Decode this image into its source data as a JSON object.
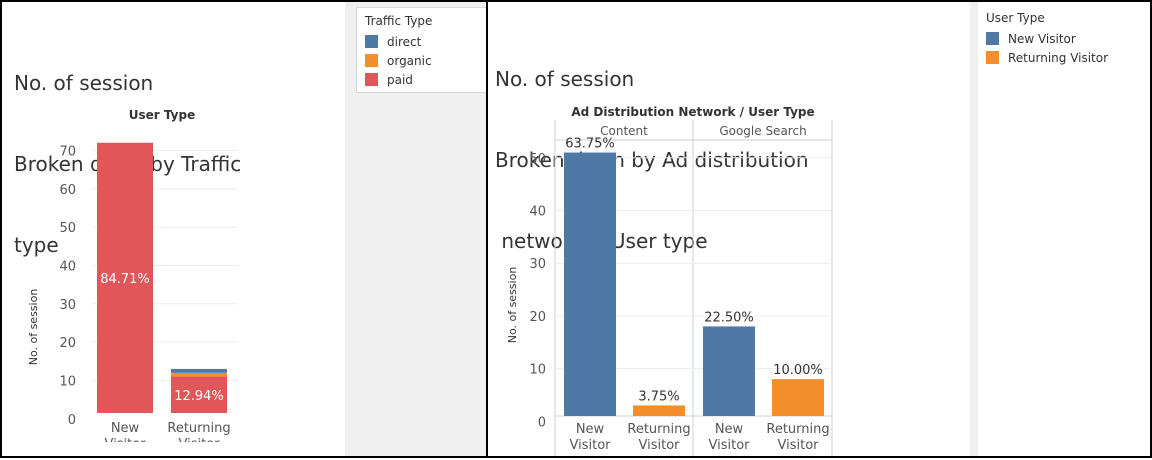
{
  "colors": {
    "blue": "#4e79a7",
    "orange": "#f28e2b",
    "red": "#e15759"
  },
  "left": {
    "title_lines": [
      "No. of session",
      "Broken down by Traffic",
      "type"
    ],
    "legend": {
      "title": "Traffic Type",
      "items": [
        {
          "label": "direct",
          "color": "#4e79a7"
        },
        {
          "label": "organic",
          "color": "#f28e2b"
        },
        {
          "label": "paid",
          "color": "#e15759"
        }
      ]
    }
  },
  "right": {
    "title_lines": [
      "No. of session",
      "Broken down by Ad distribution",
      " network & User type"
    ],
    "legend": {
      "title": "User Type",
      "items": [
        {
          "label": "New Visitor",
          "color": "#4e79a7"
        },
        {
          "label": "Returning Visitor",
          "color": "#f28e2b"
        }
      ]
    }
  },
  "chart_data": [
    {
      "type": "bar",
      "stacked": true,
      "title": "User Type",
      "ylabel": "No. of session",
      "ylim": [
        0,
        75
      ],
      "yticks": [
        0,
        10,
        20,
        30,
        40,
        50,
        60,
        70
      ],
      "categories": [
        "New Visitor",
        "Returning Visitor"
      ],
      "category_lines": [
        [
          "New",
          "Visitor"
        ],
        [
          "Returning",
          "Visitor"
        ]
      ],
      "series": [
        {
          "name": "paid",
          "color": "#e15759",
          "values": [
            72,
            11
          ],
          "labels": [
            "84.71%",
            "12.94%"
          ]
        },
        {
          "name": "organic",
          "color": "#f28e2b",
          "values": [
            0,
            1
          ],
          "labels": [
            "",
            ""
          ]
        },
        {
          "name": "direct",
          "color": "#4e79a7",
          "values": [
            0,
            1
          ],
          "labels": [
            "",
            ""
          ]
        }
      ]
    },
    {
      "type": "bar",
      "title": "Ad Distribution Network  /  User Type",
      "ylabel": "No. of session",
      "ylim": [
        0,
        56
      ],
      "yticks": [
        0,
        10,
        20,
        30,
        40,
        50
      ],
      "groups": [
        {
          "name": "Content",
          "categories": [
            "New Visitor",
            "Returning Visitor"
          ],
          "category_lines": [
            [
              "New",
              "Visitor"
            ],
            [
              "Returning",
              "Visitor"
            ]
          ],
          "values": [
            51,
            3
          ],
          "labels": [
            "63.75%",
            "3.75%"
          ],
          "colors": [
            "#4e79a7",
            "#f28e2b"
          ]
        },
        {
          "name": "Google Search",
          "categories": [
            "New Visitor",
            "Returning Visitor"
          ],
          "category_lines": [
            [
              "New",
              "Visitor"
            ],
            [
              "Returning",
              "Visitor"
            ]
          ],
          "values": [
            18,
            8
          ],
          "labels": [
            "22.50%",
            "10.00%"
          ],
          "colors": [
            "#4e79a7",
            "#f28e2b"
          ]
        }
      ]
    }
  ]
}
